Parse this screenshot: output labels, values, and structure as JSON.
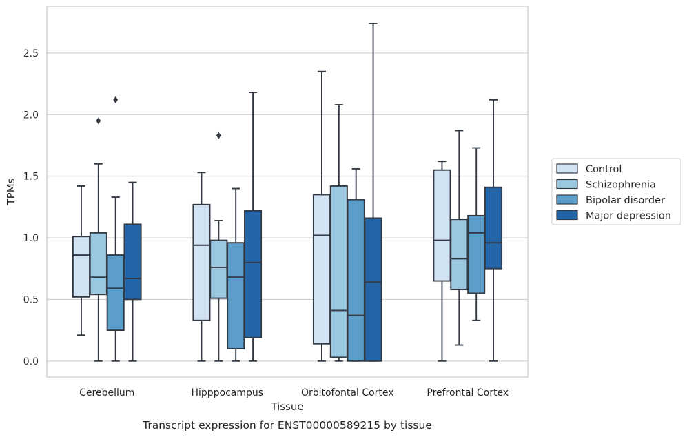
{
  "chart_data": {
    "type": "box",
    "caption": "Transcript expression for ENST00000589215 by tissue",
    "xlabel": "Tissue",
    "ylabel": "TPMs",
    "ylim": [
      -0.13,
      2.88
    ],
    "yticks": [
      "0.0",
      "0.5",
      "1.0",
      "1.5",
      "2.0",
      "2.5"
    ],
    "grid": "horizontal",
    "legend_position": "right",
    "categories": [
      "Cerebellum",
      "Hipppocampus",
      "Orbitofontal Cortex",
      "Prefrontal Cortex"
    ],
    "series": [
      {
        "name": "Control",
        "color": "#d2e3f3",
        "boxes": [
          {
            "whislo": 0.21,
            "q1": 0.52,
            "med": 0.86,
            "q3": 1.01,
            "whishi": 1.42,
            "fliers": []
          },
          {
            "whislo": 0.0,
            "q1": 0.33,
            "med": 0.94,
            "q3": 1.27,
            "whishi": 1.53,
            "fliers": []
          },
          {
            "whislo": 0.0,
            "q1": 0.14,
            "med": 1.02,
            "q3": 1.35,
            "whishi": 2.35,
            "fliers": []
          },
          {
            "whislo": 0.0,
            "q1": 0.65,
            "med": 0.98,
            "q3": 1.55,
            "whishi": 1.62,
            "fliers": []
          }
        ]
      },
      {
        "name": "Schizophrenia",
        "color": "#9ac8e0",
        "boxes": [
          {
            "whislo": 0.0,
            "q1": 0.54,
            "med": 0.68,
            "q3": 1.04,
            "whishi": 1.6,
            "fliers": [
              1.95
            ]
          },
          {
            "whislo": 0.0,
            "q1": 0.51,
            "med": 0.76,
            "q3": 0.98,
            "whishi": 1.14,
            "fliers": [
              1.83
            ]
          },
          {
            "whislo": 0.0,
            "q1": 0.03,
            "med": 0.41,
            "q3": 1.42,
            "whishi": 2.08,
            "fliers": []
          },
          {
            "whislo": 0.13,
            "q1": 0.58,
            "med": 0.83,
            "q3": 1.15,
            "whishi": 1.87,
            "fliers": []
          }
        ]
      },
      {
        "name": "Bipolar disorder",
        "color": "#5a9ec9",
        "boxes": [
          {
            "whislo": 0.0,
            "q1": 0.25,
            "med": 0.59,
            "q3": 0.86,
            "whishi": 1.33,
            "fliers": [
              2.12
            ]
          },
          {
            "whislo": 0.0,
            "q1": 0.1,
            "med": 0.68,
            "q3": 0.96,
            "whishi": 1.4,
            "fliers": []
          },
          {
            "whislo": 0.0,
            "q1": 0.0,
            "med": 0.37,
            "q3": 1.31,
            "whishi": 1.56,
            "fliers": []
          },
          {
            "whislo": 0.33,
            "q1": 0.55,
            "med": 1.04,
            "q3": 1.18,
            "whishi": 1.73,
            "fliers": []
          }
        ]
      },
      {
        "name": "Major depression",
        "color": "#2465a8",
        "boxes": [
          {
            "whislo": 0.0,
            "q1": 0.5,
            "med": 0.67,
            "q3": 1.11,
            "whishi": 1.45,
            "fliers": []
          },
          {
            "whislo": 0.0,
            "q1": 0.19,
            "med": 0.8,
            "q3": 1.22,
            "whishi": 2.18,
            "fliers": []
          },
          {
            "whislo": 0.0,
            "q1": 0.0,
            "med": 0.64,
            "q3": 1.16,
            "whishi": 2.74,
            "fliers": []
          },
          {
            "whislo": 0.0,
            "q1": 0.75,
            "med": 0.96,
            "q3": 1.41,
            "whishi": 2.12,
            "fliers": []
          }
        ]
      }
    ]
  }
}
